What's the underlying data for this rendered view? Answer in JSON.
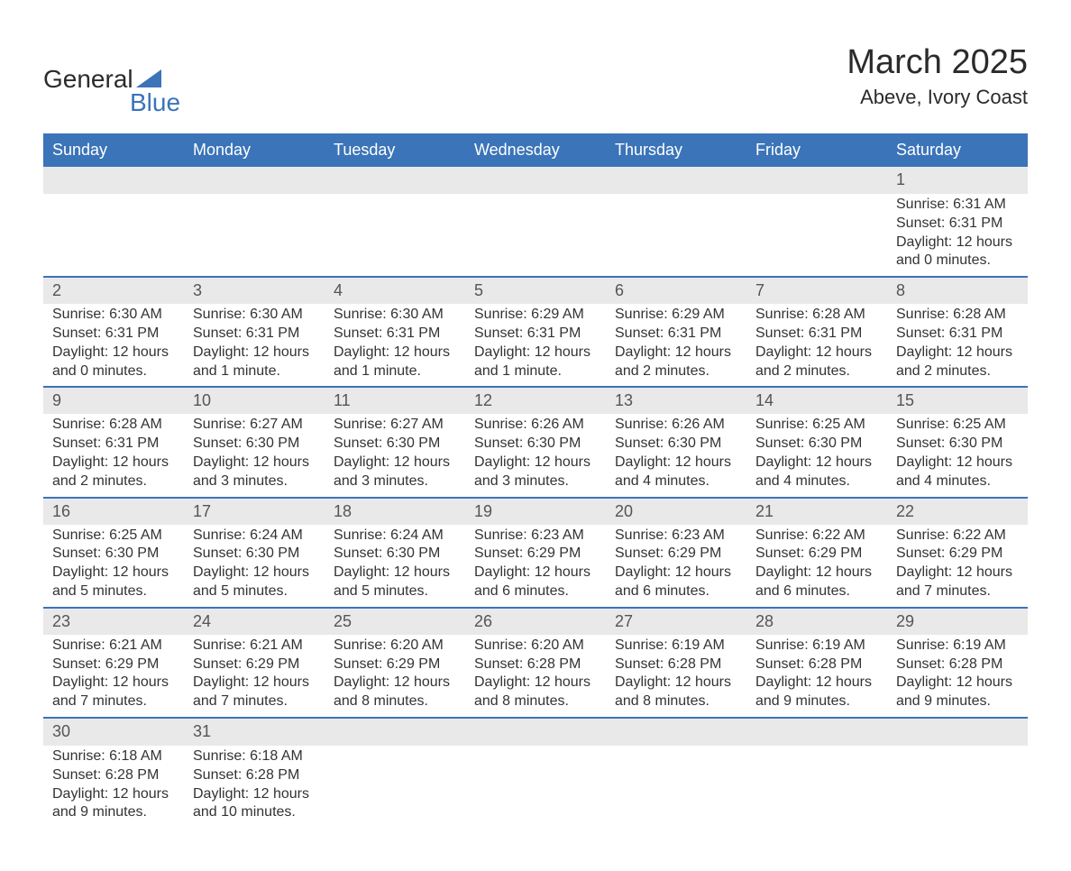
{
  "logo": {
    "word1": "General",
    "word2": "Blue"
  },
  "title": "March 2025",
  "location": "Abeve, Ivory Coast",
  "colors": {
    "header_bg": "#3b74b8",
    "header_text": "#ffffff",
    "band_bg": "#e9e9e9",
    "row_border": "#3b74b8",
    "body_text": "#333333",
    "title_text": "#2b2b2b"
  },
  "typography": {
    "title_fontsize": 38,
    "location_fontsize": 22,
    "weekday_fontsize": 18,
    "daynum_fontsize": 18,
    "body_fontsize": 16
  },
  "weekdays": [
    "Sunday",
    "Monday",
    "Tuesday",
    "Wednesday",
    "Thursday",
    "Friday",
    "Saturday"
  ],
  "weeks": [
    [
      {
        "day": "",
        "lines": []
      },
      {
        "day": "",
        "lines": []
      },
      {
        "day": "",
        "lines": []
      },
      {
        "day": "",
        "lines": []
      },
      {
        "day": "",
        "lines": []
      },
      {
        "day": "",
        "lines": []
      },
      {
        "day": "1",
        "lines": [
          "Sunrise: 6:31 AM",
          "Sunset: 6:31 PM",
          "Daylight: 12 hours and 0 minutes."
        ]
      }
    ],
    [
      {
        "day": "2",
        "lines": [
          "Sunrise: 6:30 AM",
          "Sunset: 6:31 PM",
          "Daylight: 12 hours and 0 minutes."
        ]
      },
      {
        "day": "3",
        "lines": [
          "Sunrise: 6:30 AM",
          "Sunset: 6:31 PM",
          "Daylight: 12 hours and 1 minute."
        ]
      },
      {
        "day": "4",
        "lines": [
          "Sunrise: 6:30 AM",
          "Sunset: 6:31 PM",
          "Daylight: 12 hours and 1 minute."
        ]
      },
      {
        "day": "5",
        "lines": [
          "Sunrise: 6:29 AM",
          "Sunset: 6:31 PM",
          "Daylight: 12 hours and 1 minute."
        ]
      },
      {
        "day": "6",
        "lines": [
          "Sunrise: 6:29 AM",
          "Sunset: 6:31 PM",
          "Daylight: 12 hours and 2 minutes."
        ]
      },
      {
        "day": "7",
        "lines": [
          "Sunrise: 6:28 AM",
          "Sunset: 6:31 PM",
          "Daylight: 12 hours and 2 minutes."
        ]
      },
      {
        "day": "8",
        "lines": [
          "Sunrise: 6:28 AM",
          "Sunset: 6:31 PM",
          "Daylight: 12 hours and 2 minutes."
        ]
      }
    ],
    [
      {
        "day": "9",
        "lines": [
          "Sunrise: 6:28 AM",
          "Sunset: 6:31 PM",
          "Daylight: 12 hours and 2 minutes."
        ]
      },
      {
        "day": "10",
        "lines": [
          "Sunrise: 6:27 AM",
          "Sunset: 6:30 PM",
          "Daylight: 12 hours and 3 minutes."
        ]
      },
      {
        "day": "11",
        "lines": [
          "Sunrise: 6:27 AM",
          "Sunset: 6:30 PM",
          "Daylight: 12 hours and 3 minutes."
        ]
      },
      {
        "day": "12",
        "lines": [
          "Sunrise: 6:26 AM",
          "Sunset: 6:30 PM",
          "Daylight: 12 hours and 3 minutes."
        ]
      },
      {
        "day": "13",
        "lines": [
          "Sunrise: 6:26 AM",
          "Sunset: 6:30 PM",
          "Daylight: 12 hours and 4 minutes."
        ]
      },
      {
        "day": "14",
        "lines": [
          "Sunrise: 6:25 AM",
          "Sunset: 6:30 PM",
          "Daylight: 12 hours and 4 minutes."
        ]
      },
      {
        "day": "15",
        "lines": [
          "Sunrise: 6:25 AM",
          "Sunset: 6:30 PM",
          "Daylight: 12 hours and 4 minutes."
        ]
      }
    ],
    [
      {
        "day": "16",
        "lines": [
          "Sunrise: 6:25 AM",
          "Sunset: 6:30 PM",
          "Daylight: 12 hours and 5 minutes."
        ]
      },
      {
        "day": "17",
        "lines": [
          "Sunrise: 6:24 AM",
          "Sunset: 6:30 PM",
          "Daylight: 12 hours and 5 minutes."
        ]
      },
      {
        "day": "18",
        "lines": [
          "Sunrise: 6:24 AM",
          "Sunset: 6:30 PM",
          "Daylight: 12 hours and 5 minutes."
        ]
      },
      {
        "day": "19",
        "lines": [
          "Sunrise: 6:23 AM",
          "Sunset: 6:29 PM",
          "Daylight: 12 hours and 6 minutes."
        ]
      },
      {
        "day": "20",
        "lines": [
          "Sunrise: 6:23 AM",
          "Sunset: 6:29 PM",
          "Daylight: 12 hours and 6 minutes."
        ]
      },
      {
        "day": "21",
        "lines": [
          "Sunrise: 6:22 AM",
          "Sunset: 6:29 PM",
          "Daylight: 12 hours and 6 minutes."
        ]
      },
      {
        "day": "22",
        "lines": [
          "Sunrise: 6:22 AM",
          "Sunset: 6:29 PM",
          "Daylight: 12 hours and 7 minutes."
        ]
      }
    ],
    [
      {
        "day": "23",
        "lines": [
          "Sunrise: 6:21 AM",
          "Sunset: 6:29 PM",
          "Daylight: 12 hours and 7 minutes."
        ]
      },
      {
        "day": "24",
        "lines": [
          "Sunrise: 6:21 AM",
          "Sunset: 6:29 PM",
          "Daylight: 12 hours and 7 minutes."
        ]
      },
      {
        "day": "25",
        "lines": [
          "Sunrise: 6:20 AM",
          "Sunset: 6:29 PM",
          "Daylight: 12 hours and 8 minutes."
        ]
      },
      {
        "day": "26",
        "lines": [
          "Sunrise: 6:20 AM",
          "Sunset: 6:28 PM",
          "Daylight: 12 hours and 8 minutes."
        ]
      },
      {
        "day": "27",
        "lines": [
          "Sunrise: 6:19 AM",
          "Sunset: 6:28 PM",
          "Daylight: 12 hours and 8 minutes."
        ]
      },
      {
        "day": "28",
        "lines": [
          "Sunrise: 6:19 AM",
          "Sunset: 6:28 PM",
          "Daylight: 12 hours and 9 minutes."
        ]
      },
      {
        "day": "29",
        "lines": [
          "Sunrise: 6:19 AM",
          "Sunset: 6:28 PM",
          "Daylight: 12 hours and 9 minutes."
        ]
      }
    ],
    [
      {
        "day": "30",
        "lines": [
          "Sunrise: 6:18 AM",
          "Sunset: 6:28 PM",
          "Daylight: 12 hours and 9 minutes."
        ]
      },
      {
        "day": "31",
        "lines": [
          "Sunrise: 6:18 AM",
          "Sunset: 6:28 PM",
          "Daylight: 12 hours and 10 minutes."
        ]
      },
      {
        "day": "",
        "lines": []
      },
      {
        "day": "",
        "lines": []
      },
      {
        "day": "",
        "lines": []
      },
      {
        "day": "",
        "lines": []
      },
      {
        "day": "",
        "lines": []
      }
    ]
  ]
}
